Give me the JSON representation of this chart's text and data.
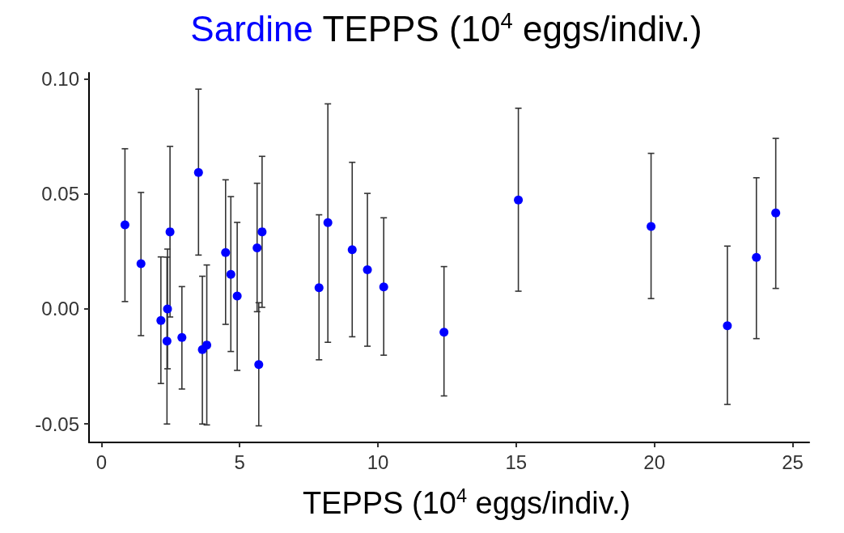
{
  "chart_data": {
    "type": "scatter",
    "title": "Sardine TEPPS (10$^{4}$ eggs/indiv.)",
    "xlabel": "TEPPS (10$^{4}$ eggs/indiv.)",
    "x": [
      0.85,
      1.43,
      2.15,
      2.39,
      2.37,
      2.48,
      2.91,
      3.51,
      3.65,
      3.81,
      4.49,
      4.68,
      4.91,
      5.63,
      5.81,
      5.69,
      7.87,
      8.19,
      9.07,
      9.62,
      10.21,
      12.39,
      15.08,
      19.88,
      22.64,
      23.69,
      24.39
    ],
    "series": [
      {
        "color": "#0000ff",
        "marker": "circle",
        "values": [
          0.0365,
          0.0197,
          -0.005,
          0.0,
          -0.014,
          0.0335,
          -0.0124,
          0.0593,
          -0.0177,
          -0.0157,
          0.0245,
          0.015,
          0.0056,
          0.0265,
          0.0335,
          -0.0242,
          0.0092,
          0.0375,
          0.0257,
          0.017,
          0.0096,
          -0.0101,
          0.0473,
          0.0358,
          -0.0073,
          0.0224,
          0.0417
        ],
        "errors": [
          [
            0.0032,
            0.0696
          ],
          [
            -0.0116,
            0.0506
          ],
          [
            -0.0324,
            0.0226
          ],
          [
            -0.026,
            0.026
          ],
          [
            -0.05,
            0.0225
          ],
          [
            -0.0035,
            0.0706
          ],
          [
            -0.0348,
            0.0097
          ],
          [
            0.0234,
            0.0955
          ],
          [
            -0.05,
            0.0142
          ],
          [
            -0.0504,
            0.0191
          ],
          [
            -0.0067,
            0.0561
          ],
          [
            -0.0185,
            0.0488
          ],
          [
            -0.0267,
            0.0376
          ],
          [
            -0.0012,
            0.0546
          ],
          [
            0.0007,
            0.0663
          ],
          [
            -0.0508,
            0.0027
          ],
          [
            -0.0221,
            0.0409
          ],
          [
            -0.0145,
            0.0891
          ],
          [
            -0.0121,
            0.0637
          ],
          [
            -0.0162,
            0.0502
          ],
          [
            -0.0201,
            0.0396
          ],
          [
            -0.0378,
            0.0184
          ],
          [
            0.0077,
            0.0872
          ],
          [
            0.0045,
            0.0676
          ],
          [
            -0.0415,
            0.0273
          ],
          [
            -0.0129,
            0.057
          ],
          [
            0.0089,
            0.0741
          ]
        ]
      }
    ],
    "xlim": [
      -0.45,
      25.6
    ],
    "xticks": [
      0,
      5,
      10,
      15,
      20,
      25
    ],
    "ylim": [
      -0.058,
      0.1026
    ],
    "yticks": [
      {
        "value": -0.05,
        "label": "-0.05"
      },
      {
        "value": 0,
        "label": "0.00"
      },
      {
        "value": 0.05,
        "label": "0.05"
      },
      {
        "value": 0.1,
        "label": "0.10"
      }
    ],
    "grid": false
  }
}
